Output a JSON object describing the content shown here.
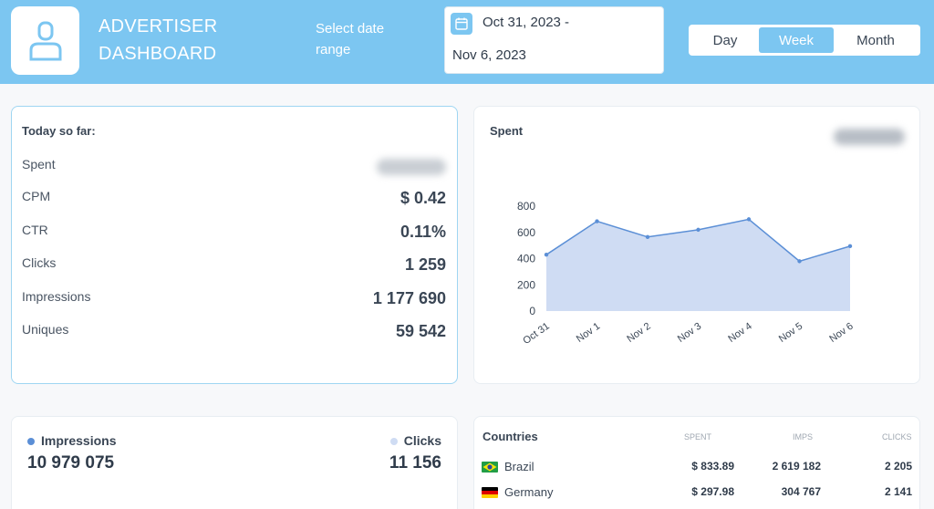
{
  "header": {
    "title_line1": "ADVERTISER",
    "title_line2": "DASHBOARD",
    "date_label": "Select date range",
    "date_start": "Oct 31, 2023 -",
    "date_end": "Nov 6, 2023",
    "ranges": [
      "Day",
      "Week",
      "Month"
    ],
    "active_range": "Week"
  },
  "today": {
    "title": "Today so far:",
    "rows": [
      {
        "label": "Spent",
        "value": ""
      },
      {
        "label": "CPM",
        "value": "$ 0.42"
      },
      {
        "label": "CTR",
        "value": "0.11%"
      },
      {
        "label": "Clicks",
        "value": "1 259"
      },
      {
        "label": "Impressions",
        "value": "1 177 690"
      },
      {
        "label": "Uniques",
        "value": "59 542"
      }
    ]
  },
  "spent_card": {
    "title": "Spent"
  },
  "chart_data": {
    "type": "area",
    "x": [
      "Oct 31",
      "Nov 1",
      "Nov 2",
      "Nov 3",
      "Nov 4",
      "Nov 5",
      "Nov 6"
    ],
    "values": [
      430,
      685,
      565,
      620,
      700,
      380,
      495
    ],
    "ylim": [
      0,
      800
    ],
    "yticks": [
      "800",
      "600",
      "400",
      "200",
      "0"
    ],
    "color": "#5b8fd6",
    "fill": "#cfdcf3"
  },
  "totals": {
    "impressions_label": "Impressions",
    "impressions_value": "10 979 075",
    "clicks_label": "Clicks",
    "clicks_value": "11 156",
    "impressions_color": "#5b8fd6",
    "clicks_color": "#cfdcf3"
  },
  "countries": {
    "title": "Countries",
    "columns": [
      "SPENT",
      "IMPS",
      "CLICKS"
    ],
    "rows": [
      {
        "name": "Brazil",
        "spent": "$ 833.89",
        "imps": "2 619 182",
        "clicks": "2 205",
        "flag": "brazil-flag-icon"
      },
      {
        "name": "Germany",
        "spent": "$ 297.98",
        "imps": "304 767",
        "clicks": "2 141",
        "flag": "germany-flag-icon"
      }
    ]
  }
}
